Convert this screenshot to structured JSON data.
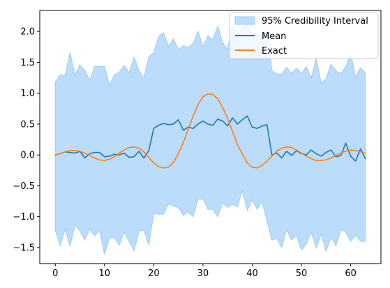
{
  "chart_data": {
    "type": "line",
    "title": "",
    "xlabel": "",
    "ylabel": "",
    "xlim": [
      -3.15,
      66.15
    ],
    "ylim": [
      -1.76,
      2.34
    ],
    "x_ticks": [
      0,
      10,
      20,
      30,
      40,
      50,
      60
    ],
    "y_ticks": [
      -1.5,
      -1.0,
      -0.5,
      0.0,
      0.5,
      1.0,
      1.5,
      2.0
    ],
    "y_tick_labels": [
      "−1.5",
      "−1.0",
      "−0.5",
      "0.0",
      "0.5",
      "1.0",
      "1.5",
      "2.0"
    ],
    "grid": false,
    "legend_position": "top-right",
    "legend": {
      "band": "95% Credibility Interval",
      "mean": "Mean",
      "exact": "Exact"
    },
    "colors": {
      "band_fill": "#bcdcfc",
      "band_edge": "#9ccbf5",
      "mean": "#1f77b4",
      "exact": "#ff7f0e"
    },
    "x": [
      0,
      1,
      2,
      3,
      4,
      5,
      6,
      7,
      8,
      9,
      10,
      11,
      12,
      13,
      14,
      15,
      16,
      17,
      18,
      19,
      20,
      21,
      22,
      23,
      24,
      25,
      26,
      27,
      28,
      29,
      30,
      31,
      32,
      33,
      34,
      35,
      36,
      37,
      38,
      39,
      40,
      41,
      42,
      43,
      44,
      45,
      46,
      47,
      48,
      49,
      50,
      51,
      52,
      53,
      54,
      55,
      56,
      57,
      58,
      59,
      60,
      61,
      62,
      63
    ],
    "series": [
      {
        "name": "Mean",
        "values": [
          0.0,
          0.02,
          0.05,
          0.04,
          0.03,
          0.06,
          -0.05,
          0.02,
          0.04,
          0.04,
          -0.03,
          -0.02,
          0.01,
          0.0,
          0.03,
          -0.04,
          -0.03,
          0.06,
          -0.05,
          0.07,
          0.43,
          0.48,
          0.51,
          0.49,
          0.5,
          0.57,
          0.4,
          0.45,
          0.43,
          0.5,
          0.55,
          0.5,
          0.48,
          0.58,
          0.55,
          0.47,
          0.6,
          0.5,
          0.57,
          0.63,
          0.45,
          0.43,
          0.47,
          0.49,
          0.0,
          0.03,
          -0.05,
          0.06,
          -0.01,
          0.07,
          0.02,
          0.0,
          0.08,
          0.02,
          -0.02,
          0.04,
          0.08,
          -0.03,
          -0.01,
          0.19,
          -0.02,
          -0.1,
          0.1,
          -0.06
        ]
      },
      {
        "name": "Exact",
        "values": [
          0.0,
          0.02,
          0.05,
          0.07,
          0.07,
          0.06,
          0.03,
          -0.01,
          -0.05,
          -0.08,
          -0.09,
          -0.07,
          -0.03,
          0.03,
          0.08,
          0.12,
          0.13,
          0.11,
          0.05,
          -0.04,
          -0.13,
          -0.19,
          -0.21,
          -0.2,
          -0.12,
          0.02,
          0.2,
          0.42,
          0.63,
          0.82,
          0.94,
          0.99,
          0.98,
          0.91,
          0.77,
          0.59,
          0.38,
          0.17,
          0.01,
          -0.13,
          -0.2,
          -0.21,
          -0.17,
          -0.1,
          -0.02,
          0.06,
          0.11,
          0.13,
          0.12,
          0.08,
          0.03,
          -0.02,
          -0.06,
          -0.09,
          -0.09,
          -0.08,
          -0.05,
          -0.01,
          0.03,
          0.06,
          0.08,
          0.07,
          0.05,
          0.03
        ]
      }
    ],
    "band": {
      "name": "95% Credibility Interval",
      "upper": [
        1.18,
        1.3,
        1.29,
        1.66,
        1.29,
        1.46,
        1.37,
        1.21,
        1.43,
        1.44,
        1.43,
        1.13,
        1.3,
        1.34,
        1.45,
        1.33,
        1.58,
        1.37,
        1.25,
        1.59,
        1.66,
        1.92,
        1.98,
        1.76,
        1.88,
        1.71,
        1.77,
        1.74,
        1.81,
        2.0,
        1.76,
        1.93,
        1.87,
        2.08,
        1.82,
        1.71,
        2.11,
        1.98,
        2.06,
        2.13,
        1.91,
        1.96,
        1.91,
        2.04,
        1.37,
        1.31,
        1.31,
        1.42,
        1.32,
        1.41,
        1.32,
        1.43,
        1.25,
        1.56,
        1.17,
        1.23,
        1.47,
        1.36,
        1.32,
        1.43,
        1.64,
        1.26,
        1.41,
        1.33
      ],
      "lower": [
        -1.22,
        -1.47,
        -1.2,
        -1.48,
        -1.13,
        -1.23,
        -1.38,
        -1.2,
        -1.31,
        -1.22,
        -1.61,
        -1.35,
        -1.34,
        -1.46,
        -1.25,
        -1.4,
        -1.55,
        -1.23,
        -1.22,
        -1.46,
        -0.95,
        -0.96,
        -0.96,
        -0.79,
        -0.83,
        -0.85,
        -0.98,
        -0.93,
        -1.0,
        -0.72,
        -0.71,
        -0.88,
        -0.88,
        -1.0,
        -0.77,
        -0.85,
        -0.8,
        -0.84,
        -0.58,
        -0.9,
        -0.72,
        -0.88,
        -0.75,
        -1.07,
        -1.38,
        -1.35,
        -1.5,
        -1.21,
        -1.38,
        -1.3,
        -1.54,
        -1.44,
        -1.25,
        -1.51,
        -1.28,
        -1.56,
        -1.33,
        -1.47,
        -1.21,
        -1.25,
        -1.4,
        -1.3,
        -1.4,
        -1.4
      ]
    }
  }
}
